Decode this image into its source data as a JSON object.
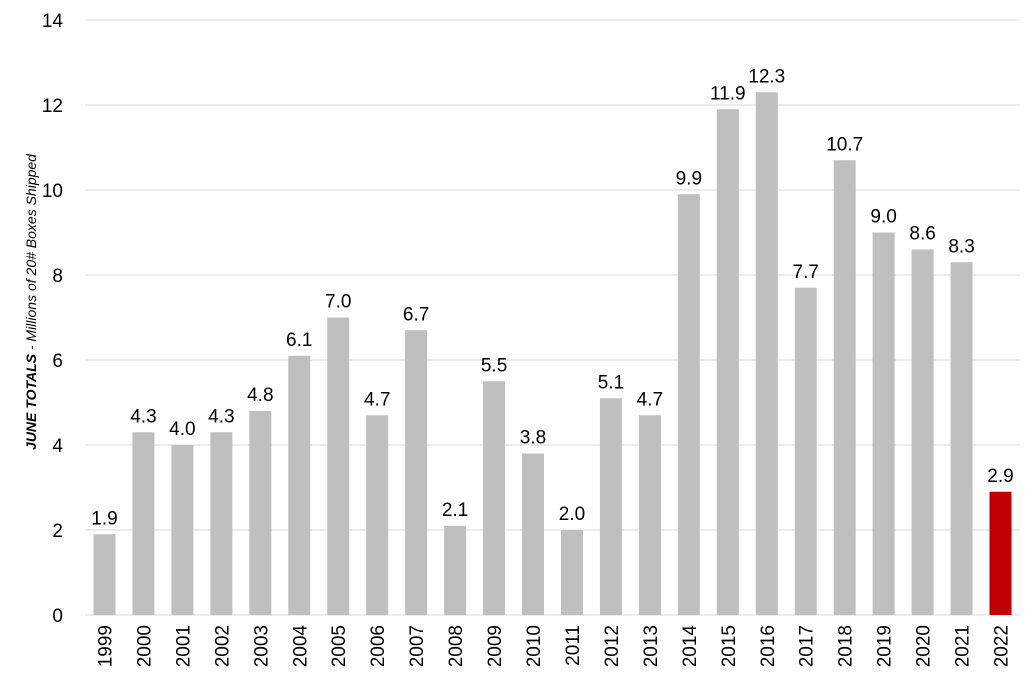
{
  "chart_data": {
    "type": "bar",
    "categories": [
      "1999",
      "2000",
      "2001",
      "2002",
      "2003",
      "2004",
      "2005",
      "2006",
      "2007",
      "2008",
      "2009",
      "2010",
      "2011",
      "2012",
      "2013",
      "2014",
      "2015",
      "2016",
      "2017",
      "2018",
      "2019",
      "2020",
      "2021",
      "2022"
    ],
    "values": [
      1.9,
      4.3,
      4.0,
      4.3,
      4.8,
      6.1,
      7.0,
      4.7,
      6.7,
      2.1,
      5.5,
      3.8,
      2.0,
      5.1,
      4.7,
      9.9,
      11.9,
      12.3,
      7.7,
      10.7,
      9.0,
      8.6,
      8.3,
      2.9
    ],
    "data_labels": [
      "1.9",
      "4.3",
      "4.0",
      "4.3",
      "4.8",
      "6.1",
      "7.0",
      "4.7",
      "6.7",
      "2.1",
      "5.5",
      "3.8",
      "2.0",
      "5.1",
      "4.7",
      "9.9",
      "11.9",
      "12.3",
      "7.7",
      "10.7",
      "9.0",
      "8.6",
      "8.3",
      "2.9"
    ],
    "ylabel_strong": "JUNE TOTALS",
    "ylabel_rest": " - Millions of 20# Boxes Shipped",
    "ylim": [
      0,
      14
    ],
    "yticks": [
      "0",
      "2",
      "4",
      "6",
      "8",
      "10",
      "12",
      "14"
    ],
    "grid": true,
    "legend": "none",
    "colors": {
      "default_bar": "#bfbfbf",
      "highlight_bar": "#c00000",
      "gridline": "#d9d9d9"
    },
    "highlight_category": "2022"
  }
}
